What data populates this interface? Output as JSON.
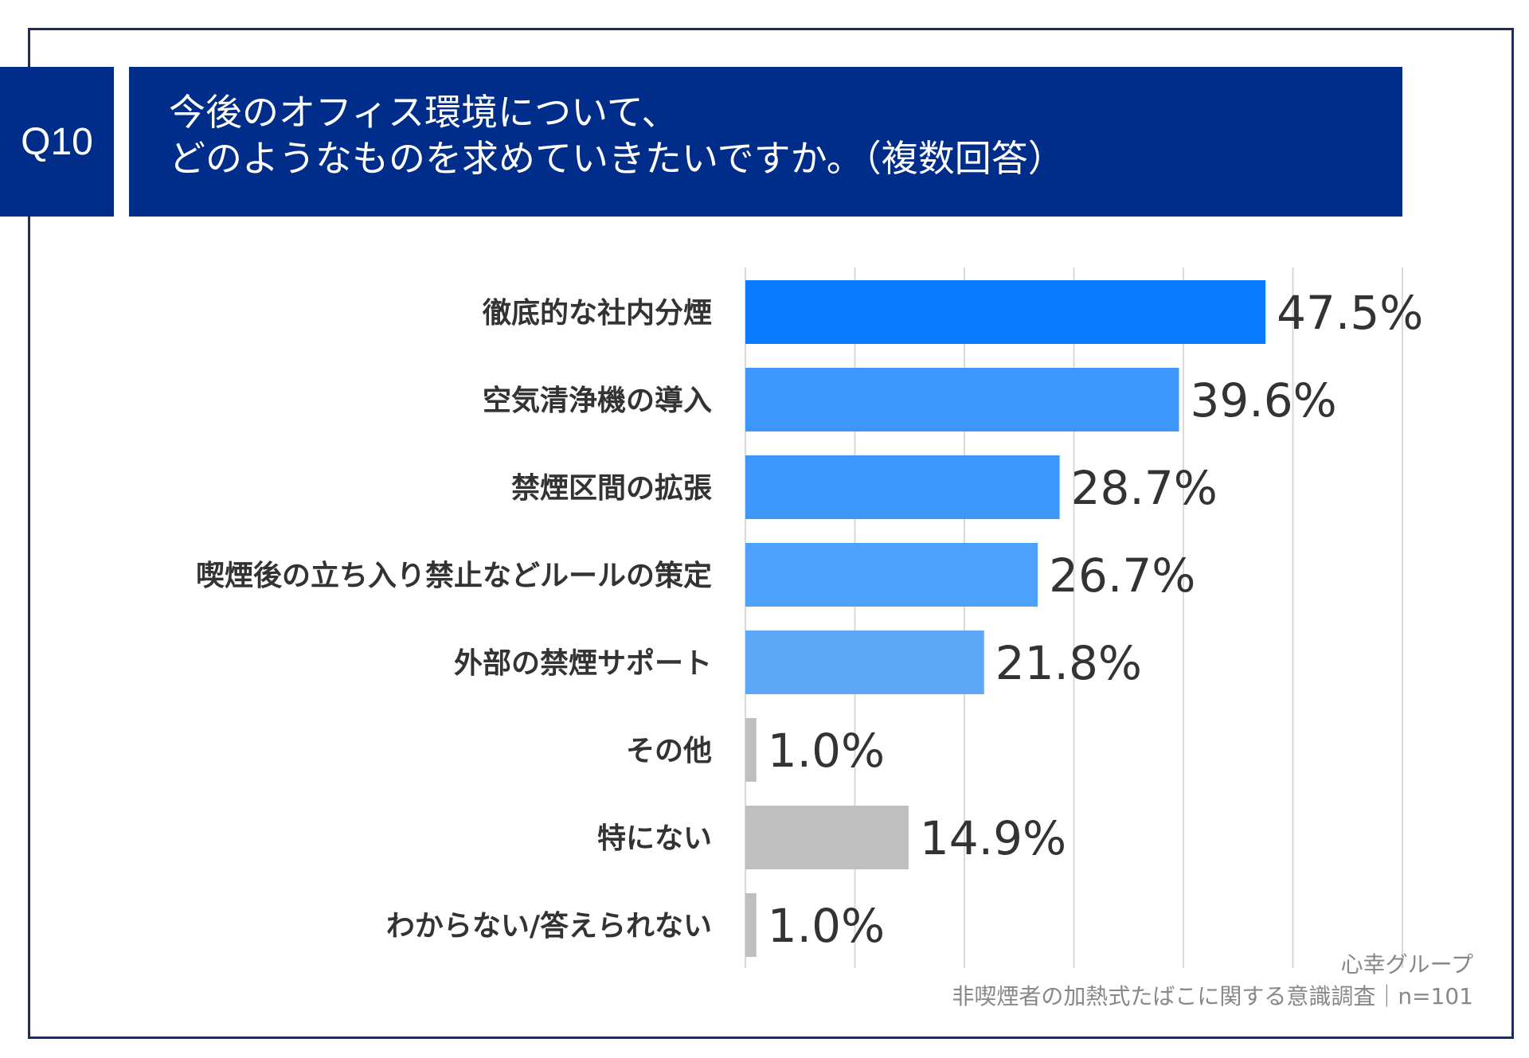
{
  "question": {
    "number": "Q10",
    "title_line1": "今後のオフィス環境について、",
    "title_line2": "どのようなものを求めていきたいですか。（複数回答）"
  },
  "colors": {
    "header_bg": "#002d8a",
    "bar_top": "#0a7bff",
    "bar_mid": "#3d97fa",
    "bar_light": "#58a6fa",
    "bar_gray": "#bfbfbf"
  },
  "chart_data": {
    "type": "bar",
    "orientation": "horizontal",
    "title": "今後のオフィス環境について、どのようなものを求めていきたいですか。（複数回答）",
    "categories": [
      "徹底的な社内分煙",
      "空気清浄機の導入",
      "禁煙区間の拡張",
      "喫煙後の立ち入り禁止などルールの策定",
      "外部の禁煙サポート",
      "その他",
      "特にない",
      "わからない/答えられない"
    ],
    "values": [
      47.5,
      39.6,
      28.7,
      26.7,
      21.8,
      1.0,
      14.9,
      1.0
    ],
    "value_labels": [
      "47.5%",
      "39.6%",
      "28.7%",
      "26.7%",
      "21.8%",
      "1.0%",
      "14.9%",
      "1.0%"
    ],
    "bar_colors": [
      "#0a7bff",
      "#3d97fa",
      "#3d97fa",
      "#4ea2fb",
      "#5ea9f7",
      "#bfbfbf",
      "#bfbfbf",
      "#bfbfbf"
    ],
    "xlim": [
      0,
      60
    ],
    "grid": true,
    "unit": "%"
  },
  "credit": {
    "company": "心幸グループ",
    "survey": "非喫煙者の加熱式たばこに関する意識調査｜n=101"
  }
}
